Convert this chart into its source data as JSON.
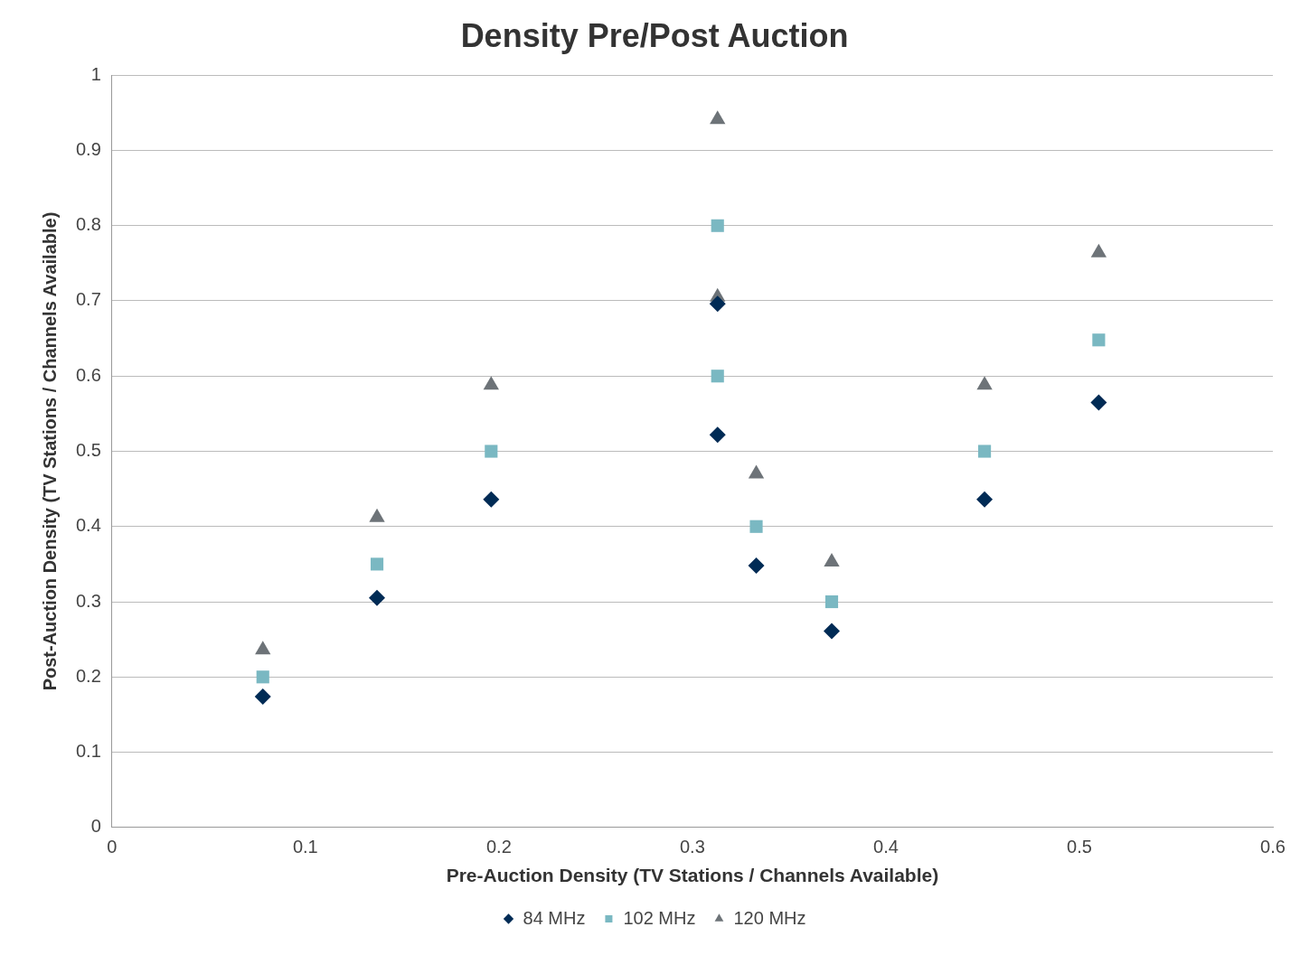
{
  "chart_data": {
    "type": "scatter",
    "title": "Density Pre/Post Auction",
    "xlabel": "Pre-Auction Density (TV Stations / Channels Available)",
    "ylabel": "Post-Auction Density (TV Stations / Channels Available)",
    "x": [
      0.078,
      0.137,
      0.196,
      0.313,
      0.313,
      0.333,
      0.372,
      0.451,
      0.51
    ],
    "series": [
      {
        "name": "84 MHz",
        "color": "#002b55",
        "marker": "diamond",
        "values": [
          0.174,
          0.305,
          0.436,
          0.696,
          0.522,
          0.348,
          0.261,
          0.436,
          0.565
        ]
      },
      {
        "name": "102 MHz",
        "color": "#7ab8c2",
        "marker": "square",
        "values": [
          0.2,
          0.35,
          0.5,
          0.8,
          0.6,
          0.4,
          0.3,
          0.5,
          0.648
        ]
      },
      {
        "name": "120 MHz",
        "color": "#6d7378",
        "marker": "triangle",
        "values": [
          0.236,
          0.412,
          0.588,
          0.941,
          0.705,
          0.47,
          0.353,
          0.588,
          0.764
        ]
      }
    ],
    "xlim": [
      0,
      0.6
    ],
    "xticks": [
      0,
      0.1,
      0.2,
      0.3,
      0.4,
      0.5,
      0.6
    ],
    "ylim": [
      0,
      1
    ],
    "yticks": [
      0,
      0.1,
      0.2,
      0.3,
      0.4,
      0.5,
      0.6,
      0.7,
      0.8,
      0.9,
      1
    ],
    "grid": "y",
    "legend": "bottom"
  }
}
